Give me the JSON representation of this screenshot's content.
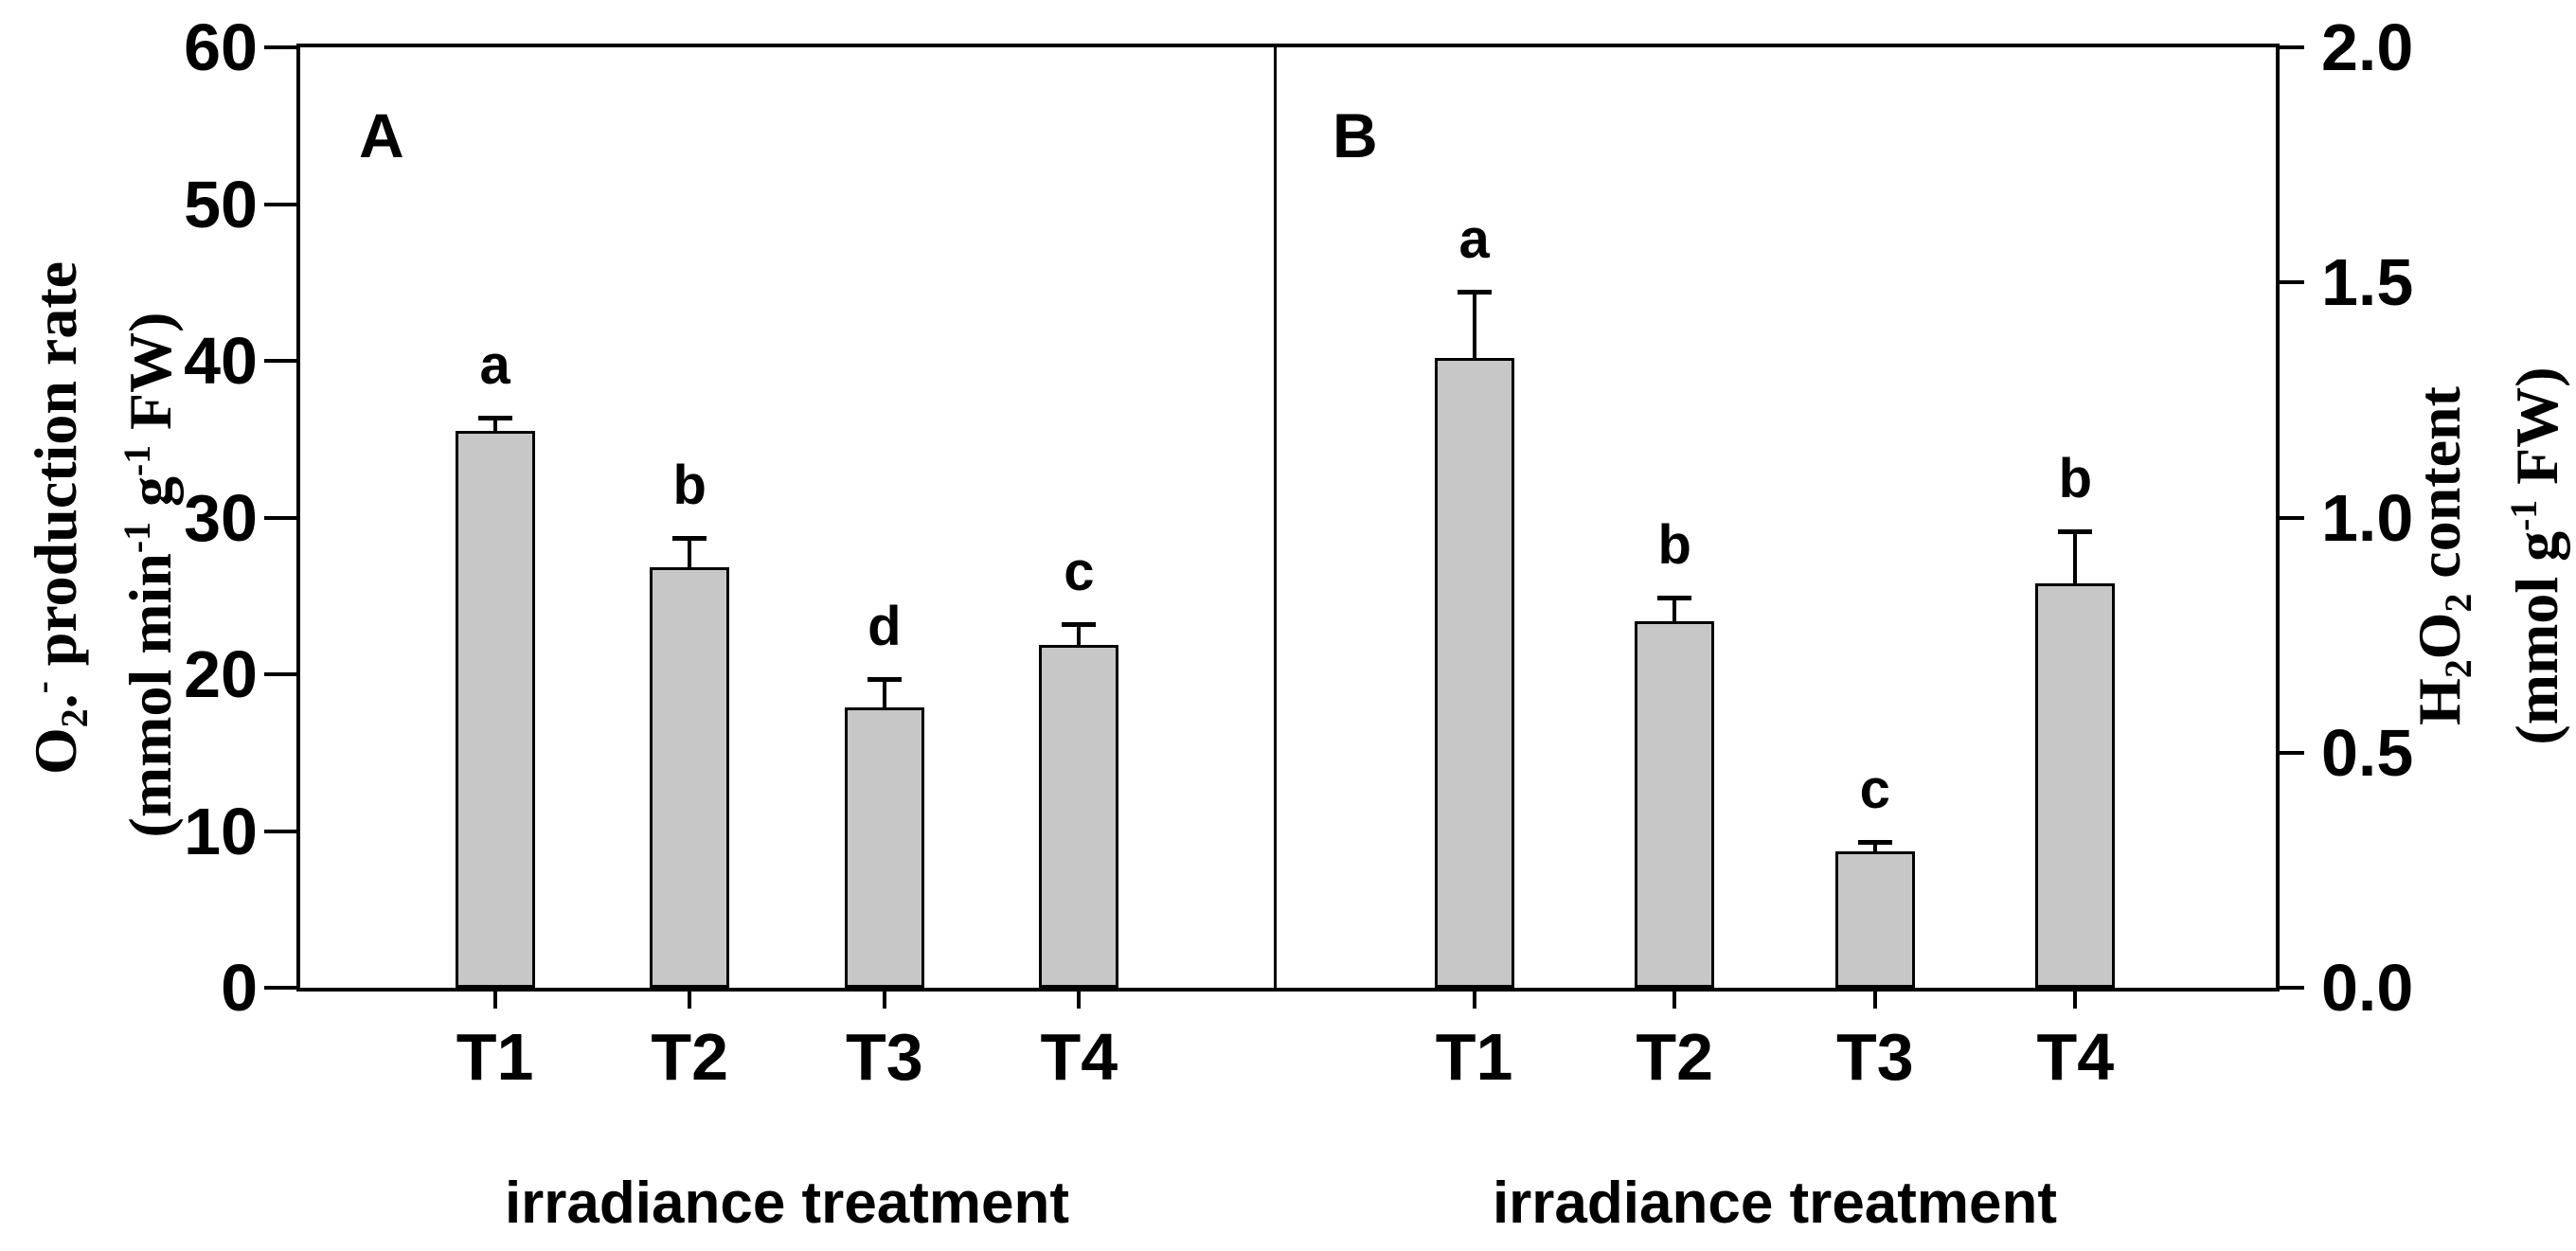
{
  "figure": {
    "background": "#ffffff",
    "bar_fill": "#c7c7c7",
    "bar_stroke": "#000000",
    "text_color": "#000000"
  },
  "chart_data": [
    {
      "type": "bar",
      "panel_letter": "A",
      "categories": [
        "T1",
        "T2",
        "T3",
        "T4"
      ],
      "values": [
        35.5,
        26.8,
        17.9,
        21.9
      ],
      "errors_plus": [
        0.9,
        1.9,
        1.8,
        1.3
      ],
      "significance_letters": [
        "a",
        "b",
        "d",
        "c"
      ],
      "xlabel": "irradiance treatment",
      "ylabel": "O2·- production rate (mmol min-1 g-1 FW)",
      "y_axis_side": "left",
      "ylim": [
        0,
        60
      ],
      "yticks": [
        "0",
        "10",
        "20",
        "30",
        "40",
        "50",
        "60"
      ],
      "grid": "off",
      "legend": "none"
    },
    {
      "type": "bar",
      "panel_letter": "B",
      "categories": [
        "T1",
        "T2",
        "T3",
        "T4"
      ],
      "values": [
        1.34,
        0.78,
        0.29,
        0.86
      ],
      "errors_plus": [
        0.14,
        0.05,
        0.02,
        0.11
      ],
      "significance_letters": [
        "a",
        "b",
        "c",
        "b"
      ],
      "xlabel": "irradiance treatment",
      "ylabel": "H2O2 content (mmol g-1 FW)",
      "y_axis_side": "right",
      "ylim": [
        0.0,
        2.0
      ],
      "yticks": [
        "0.0",
        "0.5",
        "1.0",
        "1.5",
        "2.0"
      ],
      "grid": "off",
      "legend": "none"
    }
  ],
  "left_axis_title": {
    "line1": [
      {
        "t": "O"
      },
      {
        "t": "2",
        "sub": true
      },
      {
        "t": "."
      },
      {
        "t": "-",
        "sup": true
      },
      {
        "t": " production rate"
      }
    ],
    "line2": [
      {
        "t": "(mmol min"
      },
      {
        "t": "-1",
        "sup": true
      },
      {
        "t": " g"
      },
      {
        "t": "-1",
        "sup": true
      },
      {
        "t": " FW)"
      }
    ]
  },
  "right_axis_title": {
    "line1": [
      {
        "t": "H"
      },
      {
        "t": "2",
        "sub": true
      },
      {
        "t": "O"
      },
      {
        "t": "2",
        "sub": true
      },
      {
        "t": " content"
      }
    ],
    "line2": [
      {
        "t": "(mmol g"
      },
      {
        "t": "-1",
        "sup": true
      },
      {
        "t": " FW)"
      }
    ]
  }
}
